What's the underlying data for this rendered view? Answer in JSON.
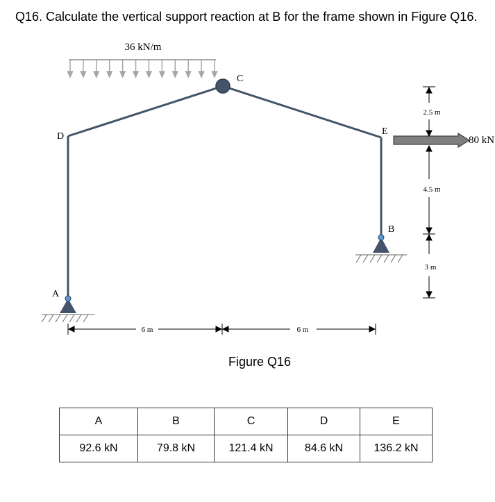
{
  "question": "Q16. Calculate the vertical support reaction at B for the frame shown in Figure Q16.",
  "figure": {
    "caption": "Figure Q16",
    "load_label": "36 kN/m",
    "force_label": "80 kN",
    "nodes": {
      "a": "A",
      "b": "B",
      "c": "C",
      "d": "D",
      "e": "E"
    },
    "dims": {
      "span_left": "6 m",
      "span_right": "6 m",
      "h1": "2.5 m",
      "h2": "4.5 m",
      "h3": "3 m"
    },
    "colors": {
      "member": "#44546a",
      "support": "#44546a",
      "arrow_fill": "#7f7f7f",
      "load_line": "#a6a6a6"
    }
  },
  "options": {
    "headers": [
      "A",
      "B",
      "C",
      "D",
      "E"
    ],
    "values": [
      "92.6 kN",
      "79.8 kN",
      "121.4 kN",
      "84.6 kN",
      "136.2 kN"
    ]
  }
}
